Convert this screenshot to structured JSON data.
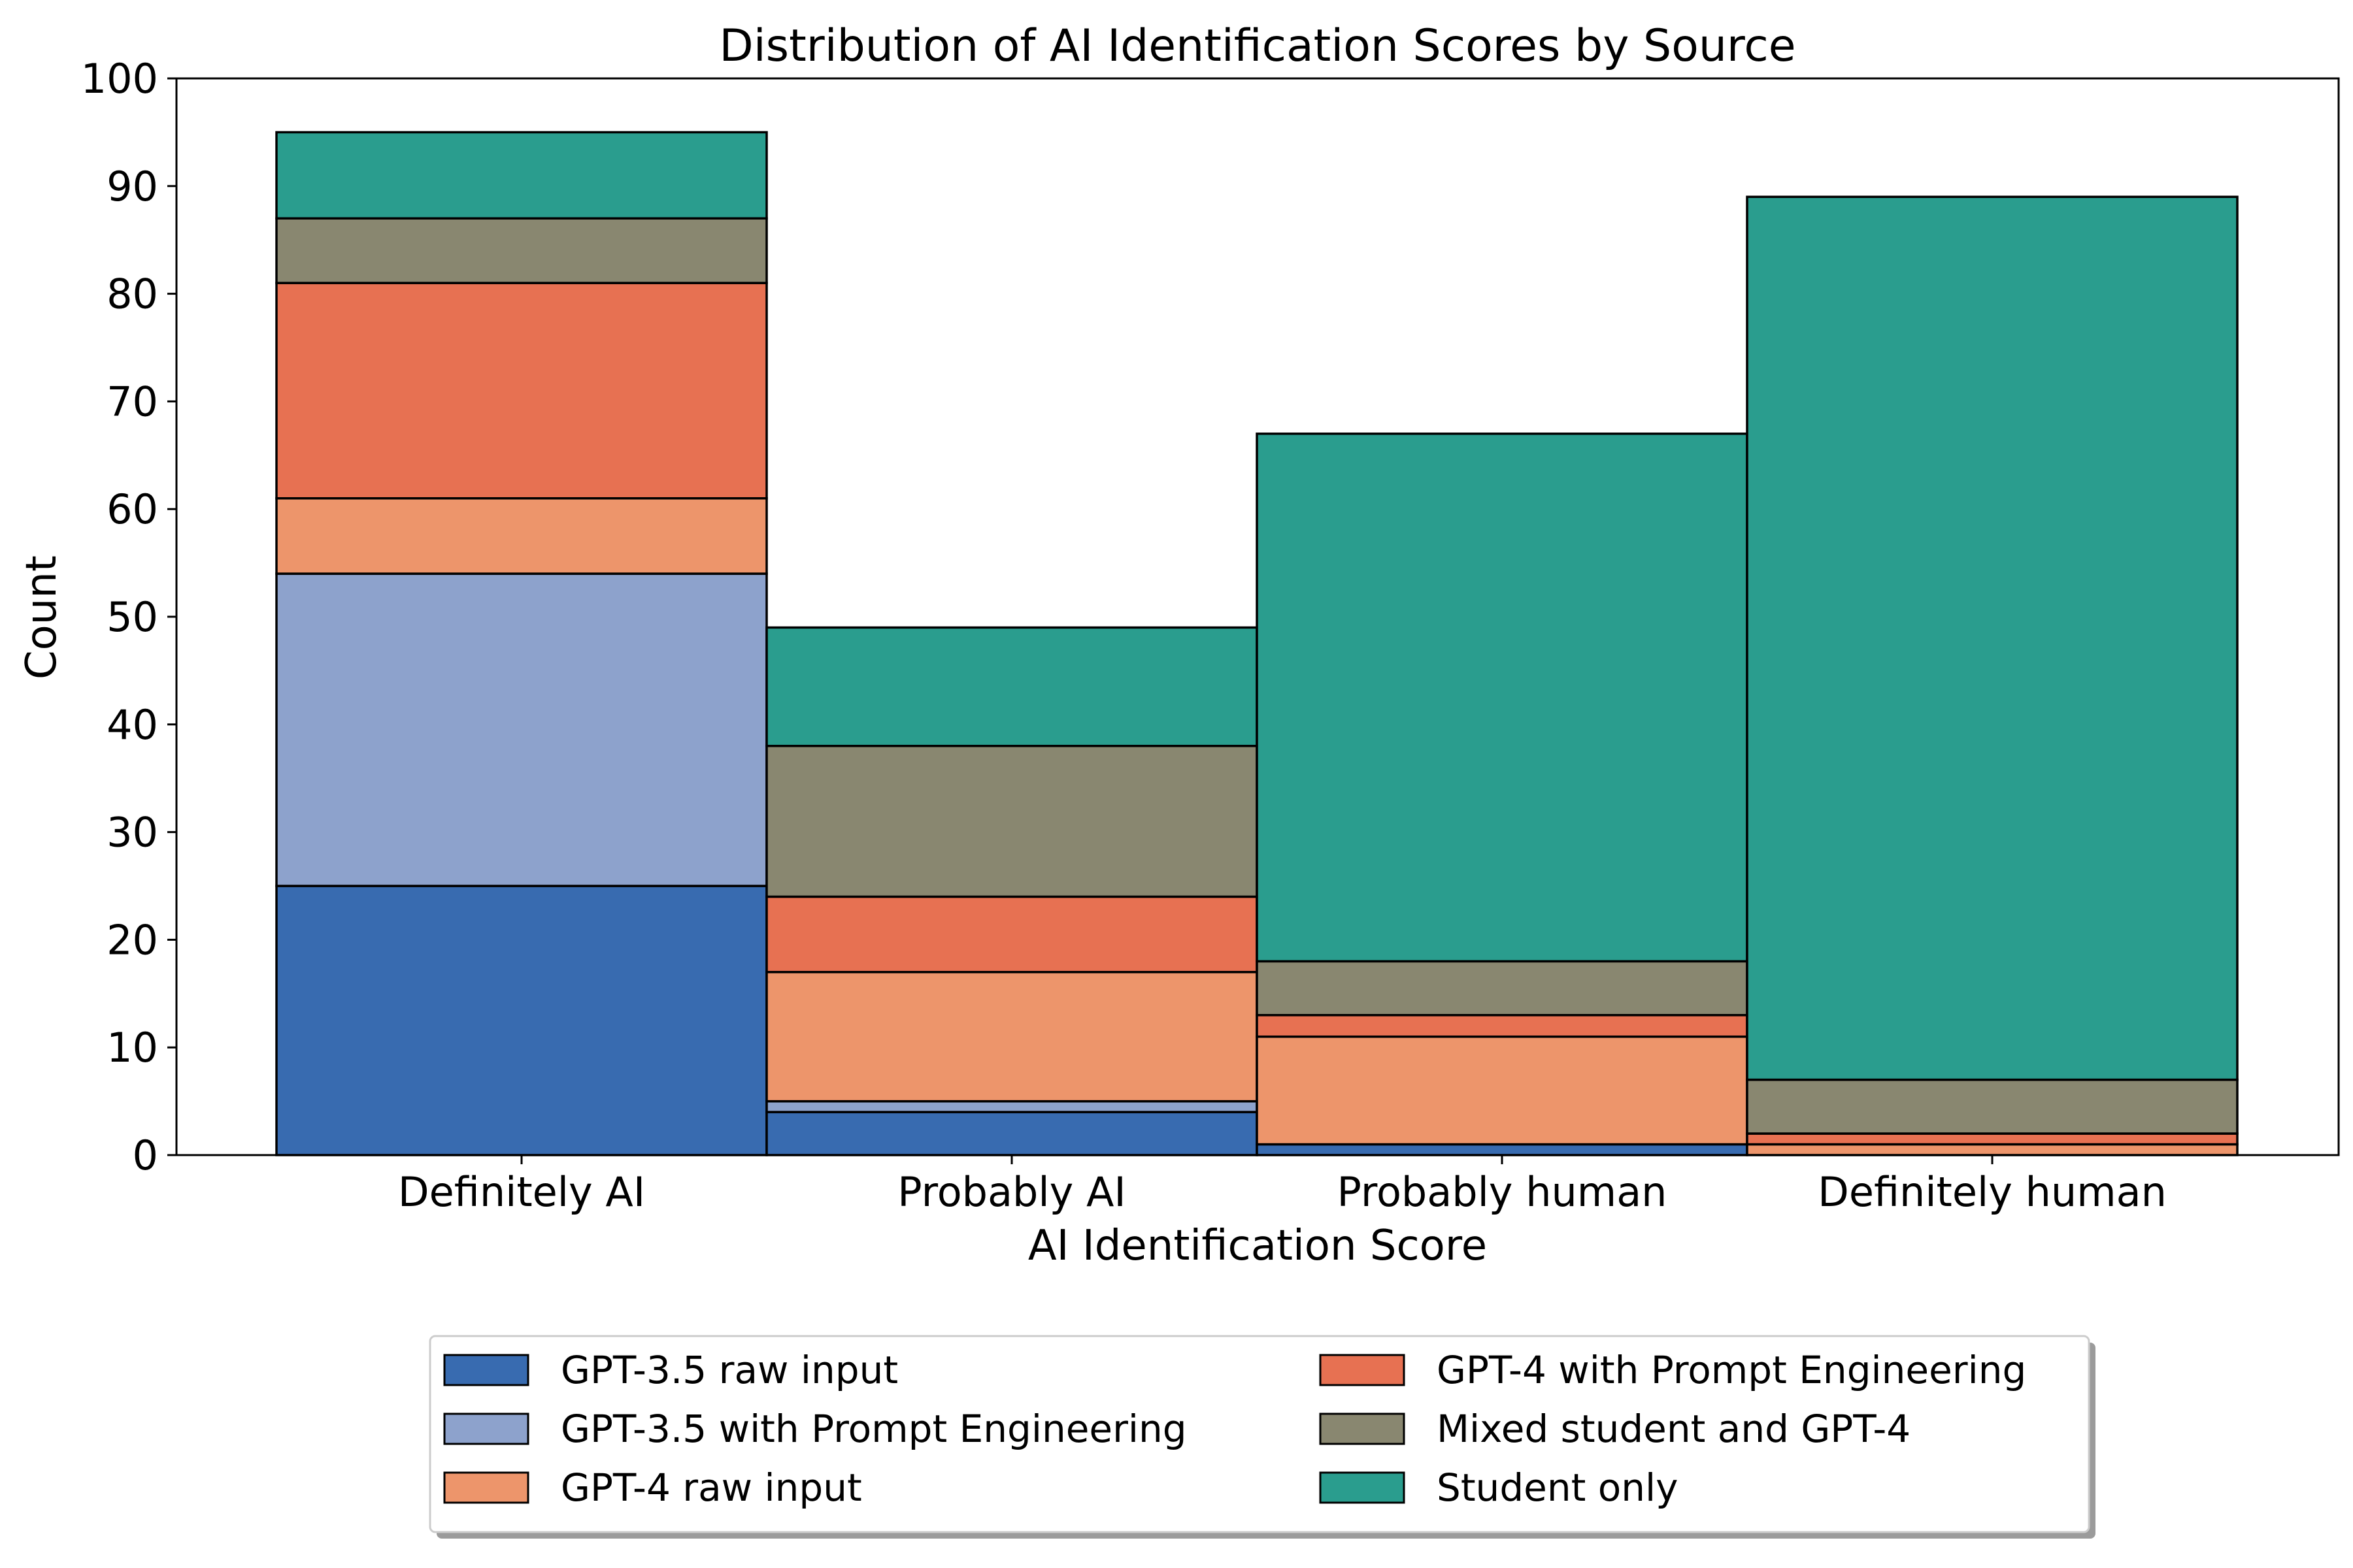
{
  "chart_data": {
    "type": "bar",
    "stacked": true,
    "title": "Distribution of AI Identification Scores by Source",
    "xlabel": "AI Identification Score",
    "ylabel": "Count",
    "ylim": [
      0,
      100
    ],
    "yticks": [
      0,
      10,
      20,
      30,
      40,
      50,
      60,
      70,
      80,
      90,
      100
    ],
    "categories": [
      "Definitely AI",
      "Probably AI",
      "Probably human",
      "Definitely human"
    ],
    "series": [
      {
        "name": "GPT-3.5 raw input",
        "color": "#386bb0",
        "values": [
          25,
          4,
          1,
          0
        ]
      },
      {
        "name": "GPT-3.5 with Prompt Engineering",
        "color": "#8da2cc",
        "values": [
          29,
          1,
          0,
          0
        ]
      },
      {
        "name": "GPT-4 raw input",
        "color": "#ed956b",
        "values": [
          7,
          12,
          10,
          1
        ]
      },
      {
        "name": "GPT-4 with Prompt Engineering",
        "color": "#e77152",
        "values": [
          20,
          7,
          2,
          1
        ]
      },
      {
        "name": "Mixed student and GPT-4",
        "color": "#898770",
        "values": [
          6,
          14,
          5,
          5
        ]
      },
      {
        "name": "Student only",
        "color": "#2a9d8e",
        "values": [
          8,
          11,
          49,
          82
        ]
      }
    ],
    "grid": false,
    "legend_position": "bottom-center"
  }
}
